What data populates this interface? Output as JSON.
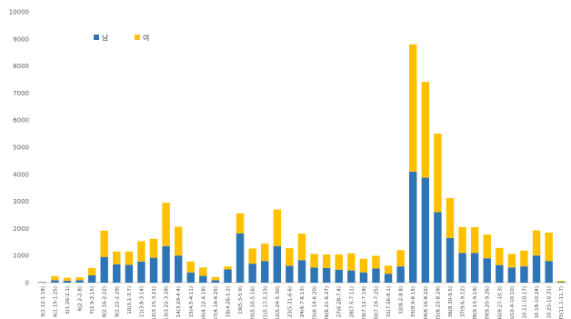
{
  "chart_data": {
    "type": "bar",
    "stacked": true,
    "title": "",
    "xlabel": "",
    "ylabel": "",
    "ylim": [
      0,
      10000
    ],
    "yticks": [
      0,
      1000,
      2000,
      3000,
      4000,
      5000,
      6000,
      7000,
      8000,
      9000,
      10000
    ],
    "grid": false,
    "legend_position": "top-left",
    "categories": [
      "3(1.12-1.18)",
      "4(1.19-1.25)",
      "5(1.26-2.1)",
      "6(2.2-2.8)",
      "7(2.9-2.15)",
      "8(2.16-2.22)",
      "9(2.23-2.29)",
      "10(3.1-3.7)",
      "11(3.8-3.14)",
      "12(3.15-3.21)",
      "13(3.22-3.28)",
      "14(3.29-4.4)",
      "15(4.5-4.11)",
      "16(4.12-4.18)",
      "17(4.19-4.25)",
      "18(4.26-5.2)",
      "19(5.3-5.9)",
      "20(5.10-5.16)",
      "21(5.17-5.23)",
      "22(5.24-5.30)",
      "23(5.31-6.6)",
      "24(6.7-6.13)",
      "25(6.14-6.20)",
      "26(6.21-6.27)",
      "27(6.28-7.4)",
      "28(7.5-7.11)",
      "29(7.12-7.18)",
      "30(7.19-7.25)",
      "31(7.26-8.1)",
      "32(8.2-8.8)",
      "33(8.9-8.15)",
      "34(8.16-8.22)",
      "35(8.23-8.29)",
      "36(8.30-9.5)",
      "37(9.6-9.12)",
      "38(9.13-9.19)",
      "39(9.20-9.26)",
      "40(9.27-10.3)",
      "41(10.4-10.10)",
      "42(10.11-10.17)",
      "43(10.18-10.24)",
      "44(10.25-10.31)",
      "45(11.1-11.7)"
    ],
    "series": [
      {
        "name": "남",
        "color": "#2E75B6",
        "values": [
          20,
          90,
          70,
          90,
          270,
          950,
          680,
          660,
          780,
          920,
          1350,
          1000,
          380,
          250,
          90,
          490,
          1820,
          700,
          800,
          1350,
          620,
          830,
          560,
          540,
          480,
          450,
          380,
          520,
          330,
          600,
          4100,
          3880,
          2600,
          1650,
          1100,
          1100,
          900,
          650,
          560,
          600,
          1000,
          800,
          30
        ]
      },
      {
        "name": "여",
        "color": "#FFC000",
        "values": [
          10,
          150,
          110,
          110,
          270,
          970,
          470,
          490,
          750,
          700,
          1600,
          1060,
          400,
          310,
          120,
          110,
          740,
          560,
          640,
          1350,
          650,
          980,
          500,
          500,
          560,
          630,
          500,
          470,
          300,
          600,
          4700,
          3530,
          2900,
          1470,
          950,
          950,
          880,
          630,
          500,
          580,
          930,
          1050,
          40
        ]
      }
    ]
  }
}
